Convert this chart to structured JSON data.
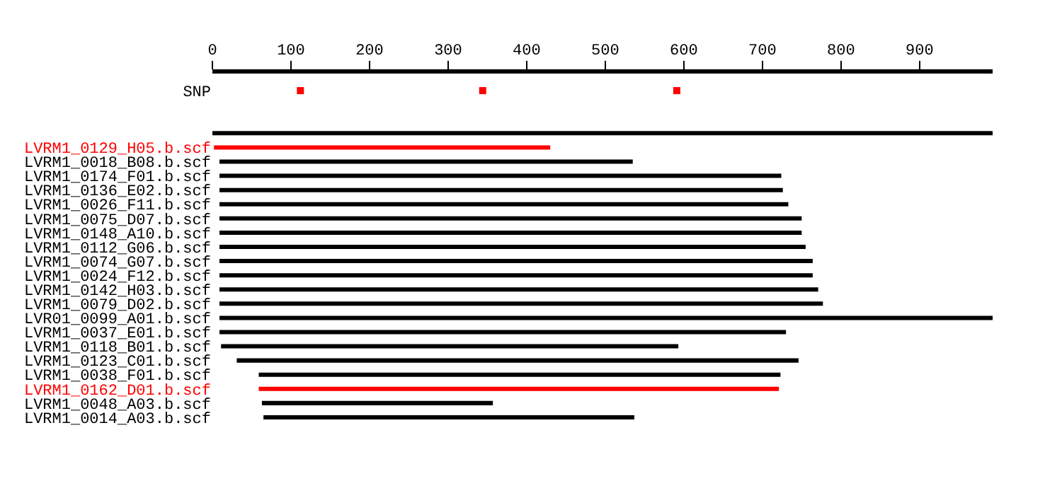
{
  "chart_data": {
    "type": "bar",
    "orientation": "horizontal",
    "categories": [
      "SNP",
      null,
      null,
      null,
      "LVRM1_0129_H05.b.scf",
      "LVRM1_0018_B08.b.scf",
      "LVRM1_0174_F01.b.scf",
      "LVRM1_0136_E02.b.scf",
      "LVRM1_0026_F11.b.scf",
      "LVRM1_0075_D07.b.scf",
      "LVRM1_0148_A10.b.scf",
      "LVRM1_0112_G06.b.scf",
      "LVRM1_0074_G07.b.scf",
      "LVRM1_0024_F12.b.scf",
      "LVRM1_0142_H03.b.scf",
      "LVRM1_0079_D02.b.scf",
      "LVR01_0099_A01.b.scf",
      "LVRM1_0037_E01.b.scf",
      "LVRM1_0118_B01.b.scf",
      "LVRM1_0123_C01.b.scf",
      "LVRM1_0038_F01.b.scf",
      "LVRM1_0162_D01.b.scf",
      "LVRM1_0048_A03.b.scf",
      "LVRM1_0014_A03.b.scf"
    ],
    "series": [
      {
        "base": [
          null,
          null,
          null,
          0,
          2,
          9,
          9,
          9,
          9,
          9,
          9,
          9,
          9,
          9,
          9,
          9,
          9,
          9,
          11,
          31,
          59,
          59,
          63,
          65
        ],
        "values": [
          null,
          null,
          null,
          993,
          428,
          526,
          715,
          717,
          724,
          741,
          741,
          746,
          755,
          755,
          762,
          768,
          986,
          721,
          582,
          715,
          664,
          662,
          294,
          472
        ],
        "colors": [
          "#000000",
          "#000000",
          "#000000",
          "#000000",
          "#ff0000",
          "#000000",
          "#000000",
          "#000000",
          "#000000",
          "#000000",
          "#000000",
          "#000000",
          "#000000",
          "#000000",
          "#000000",
          "#000000",
          "#000000",
          "#000000",
          "#000000",
          "#000000",
          "#000000",
          "#ff0000",
          "#000000",
          "#000000"
        ]
      },
      {
        "type": "scatter",
        "x": [
          "SNP",
          "SNP",
          "SNP"
        ],
        "values": [
          112,
          344,
          591
        ],
        "color": "#ff0000",
        "marker": "square"
      }
    ],
    "xlim": [
      0,
      993
    ],
    "xticks": [
      0,
      100,
      200,
      300,
      400,
      500,
      600,
      700,
      800,
      900
    ]
  }
}
